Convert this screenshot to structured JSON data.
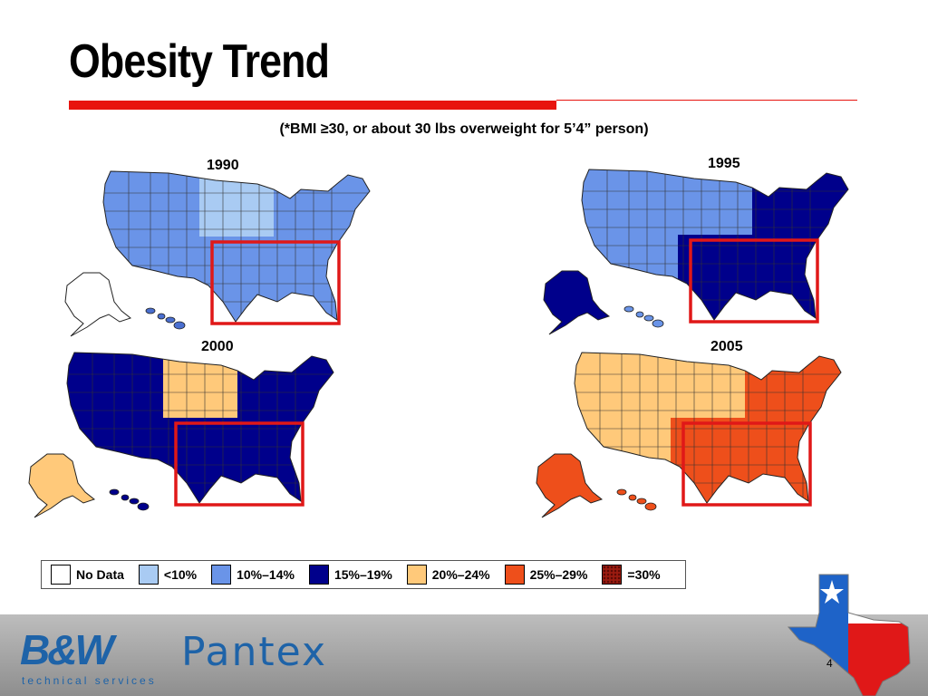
{
  "slide": {
    "title": "Obesity Trend",
    "subtitle": "(*BMI ≥30, or about 30 lbs overweight for 5’4” person)",
    "page_number": "4"
  },
  "maps": [
    {
      "year": "1990",
      "west": "#6a94e8",
      "mid": "#a9cbf3",
      "east": "#6a94e8",
      "alaska": "#ffffff",
      "hawaii": "#4a6fd0"
    },
    {
      "year": "1995",
      "west": "#6a94e8",
      "mid": "#6a94e8",
      "east": "#00008b",
      "alaska": "#00008b",
      "hawaii": "#6a94e8"
    },
    {
      "year": "2000",
      "west": "#00008b",
      "mid": "#ffc97a",
      "east": "#00008b",
      "alaska": "#ffc97a",
      "hawaii": "#00008b"
    },
    {
      "year": "2005",
      "west": "#ffc97a",
      "mid": "#ffc97a",
      "east": "#ee4f1b",
      "alaska": "#ee4f1b",
      "hawaii": "#ee4f1b"
    }
  ],
  "legend": [
    {
      "label": "No Data",
      "color": "#ffffff"
    },
    {
      "label": "<10%",
      "color": "#a9cbf3"
    },
    {
      "label": "10%–14%",
      "color": "#6a94e8"
    },
    {
      "label": "15%–19%",
      "color": "#00008b"
    },
    {
      "label": "20%–24%",
      "color": "#ffc97a"
    },
    {
      "label": "25%–29%",
      "color": "#ee4f1b"
    },
    {
      "label": "=30%",
      "color": "#9b1b10"
    }
  ],
  "highlight_color": "#e01818",
  "logo": {
    "company": "B&W",
    "tagline": "technical services",
    "site": "Pantex",
    "texas_flag_colors": {
      "blue": "#1e63c8",
      "red": "#e01818",
      "white": "#ffffff"
    }
  }
}
